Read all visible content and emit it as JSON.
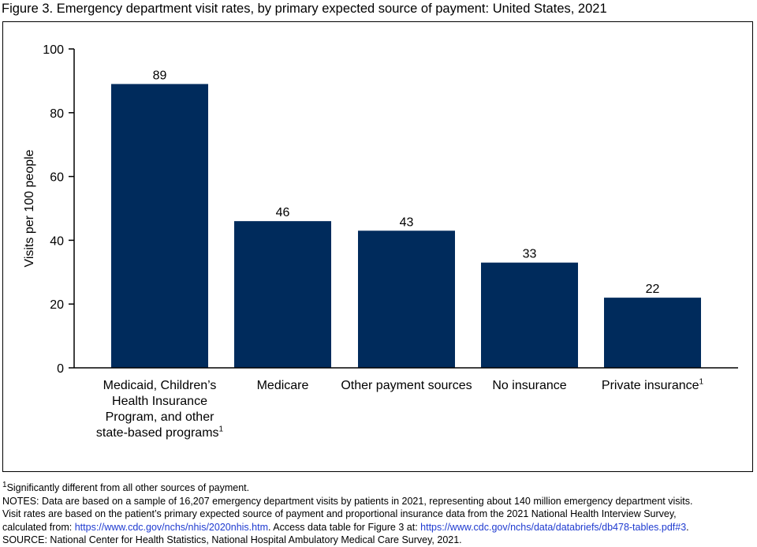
{
  "title": "Figure 3. Emergency department visit rates, by primary expected source of payment: United States, 2021",
  "chart_data": {
    "type": "bar",
    "ylabel": "Visits per 100 people",
    "ylim": [
      0,
      100
    ],
    "yticks": [
      0,
      20,
      40,
      60,
      80,
      100
    ],
    "bar_color": "#002b5c",
    "categories": [
      {
        "label": "Medicaid, Children’s Health Insurance Program, and other state-based programs",
        "footnote": "1"
      },
      {
        "label": "Medicare",
        "footnote": ""
      },
      {
        "label": "Other payment sources",
        "footnote": ""
      },
      {
        "label": "No insurance",
        "footnote": ""
      },
      {
        "label": "Private insurance",
        "footnote": "1"
      }
    ],
    "values": [
      89,
      46,
      43,
      33,
      22
    ]
  },
  "footnotes": {
    "marker": "1",
    "text": "Significantly different from all other sources of payment.",
    "notes_line1": "NOTES: Data are based on a sample of 16,207 emergency department visits by patients in 2021, representing about 140 million emergency department visits.",
    "notes_line2": "Visit rates are based on the patient’s primary expected source of payment and proportional insurance data from the 2021 National Health Interview Survey,",
    "notes_line3_prefix": "calculated from: ",
    "link1": "https://www.cdc.gov/nchs/nhis/2020nhis.htm",
    "notes_line3_mid": ". Access data table for Figure 3 at: ",
    "link2": "https://www.cdc.gov/nchs/data/databriefs/db478-tables.pdf#3",
    "notes_line3_suffix": ".",
    "source": "SOURCE: National Center for Health Statistics, National Hospital Ambulatory Medical Care Survey, 2021."
  }
}
